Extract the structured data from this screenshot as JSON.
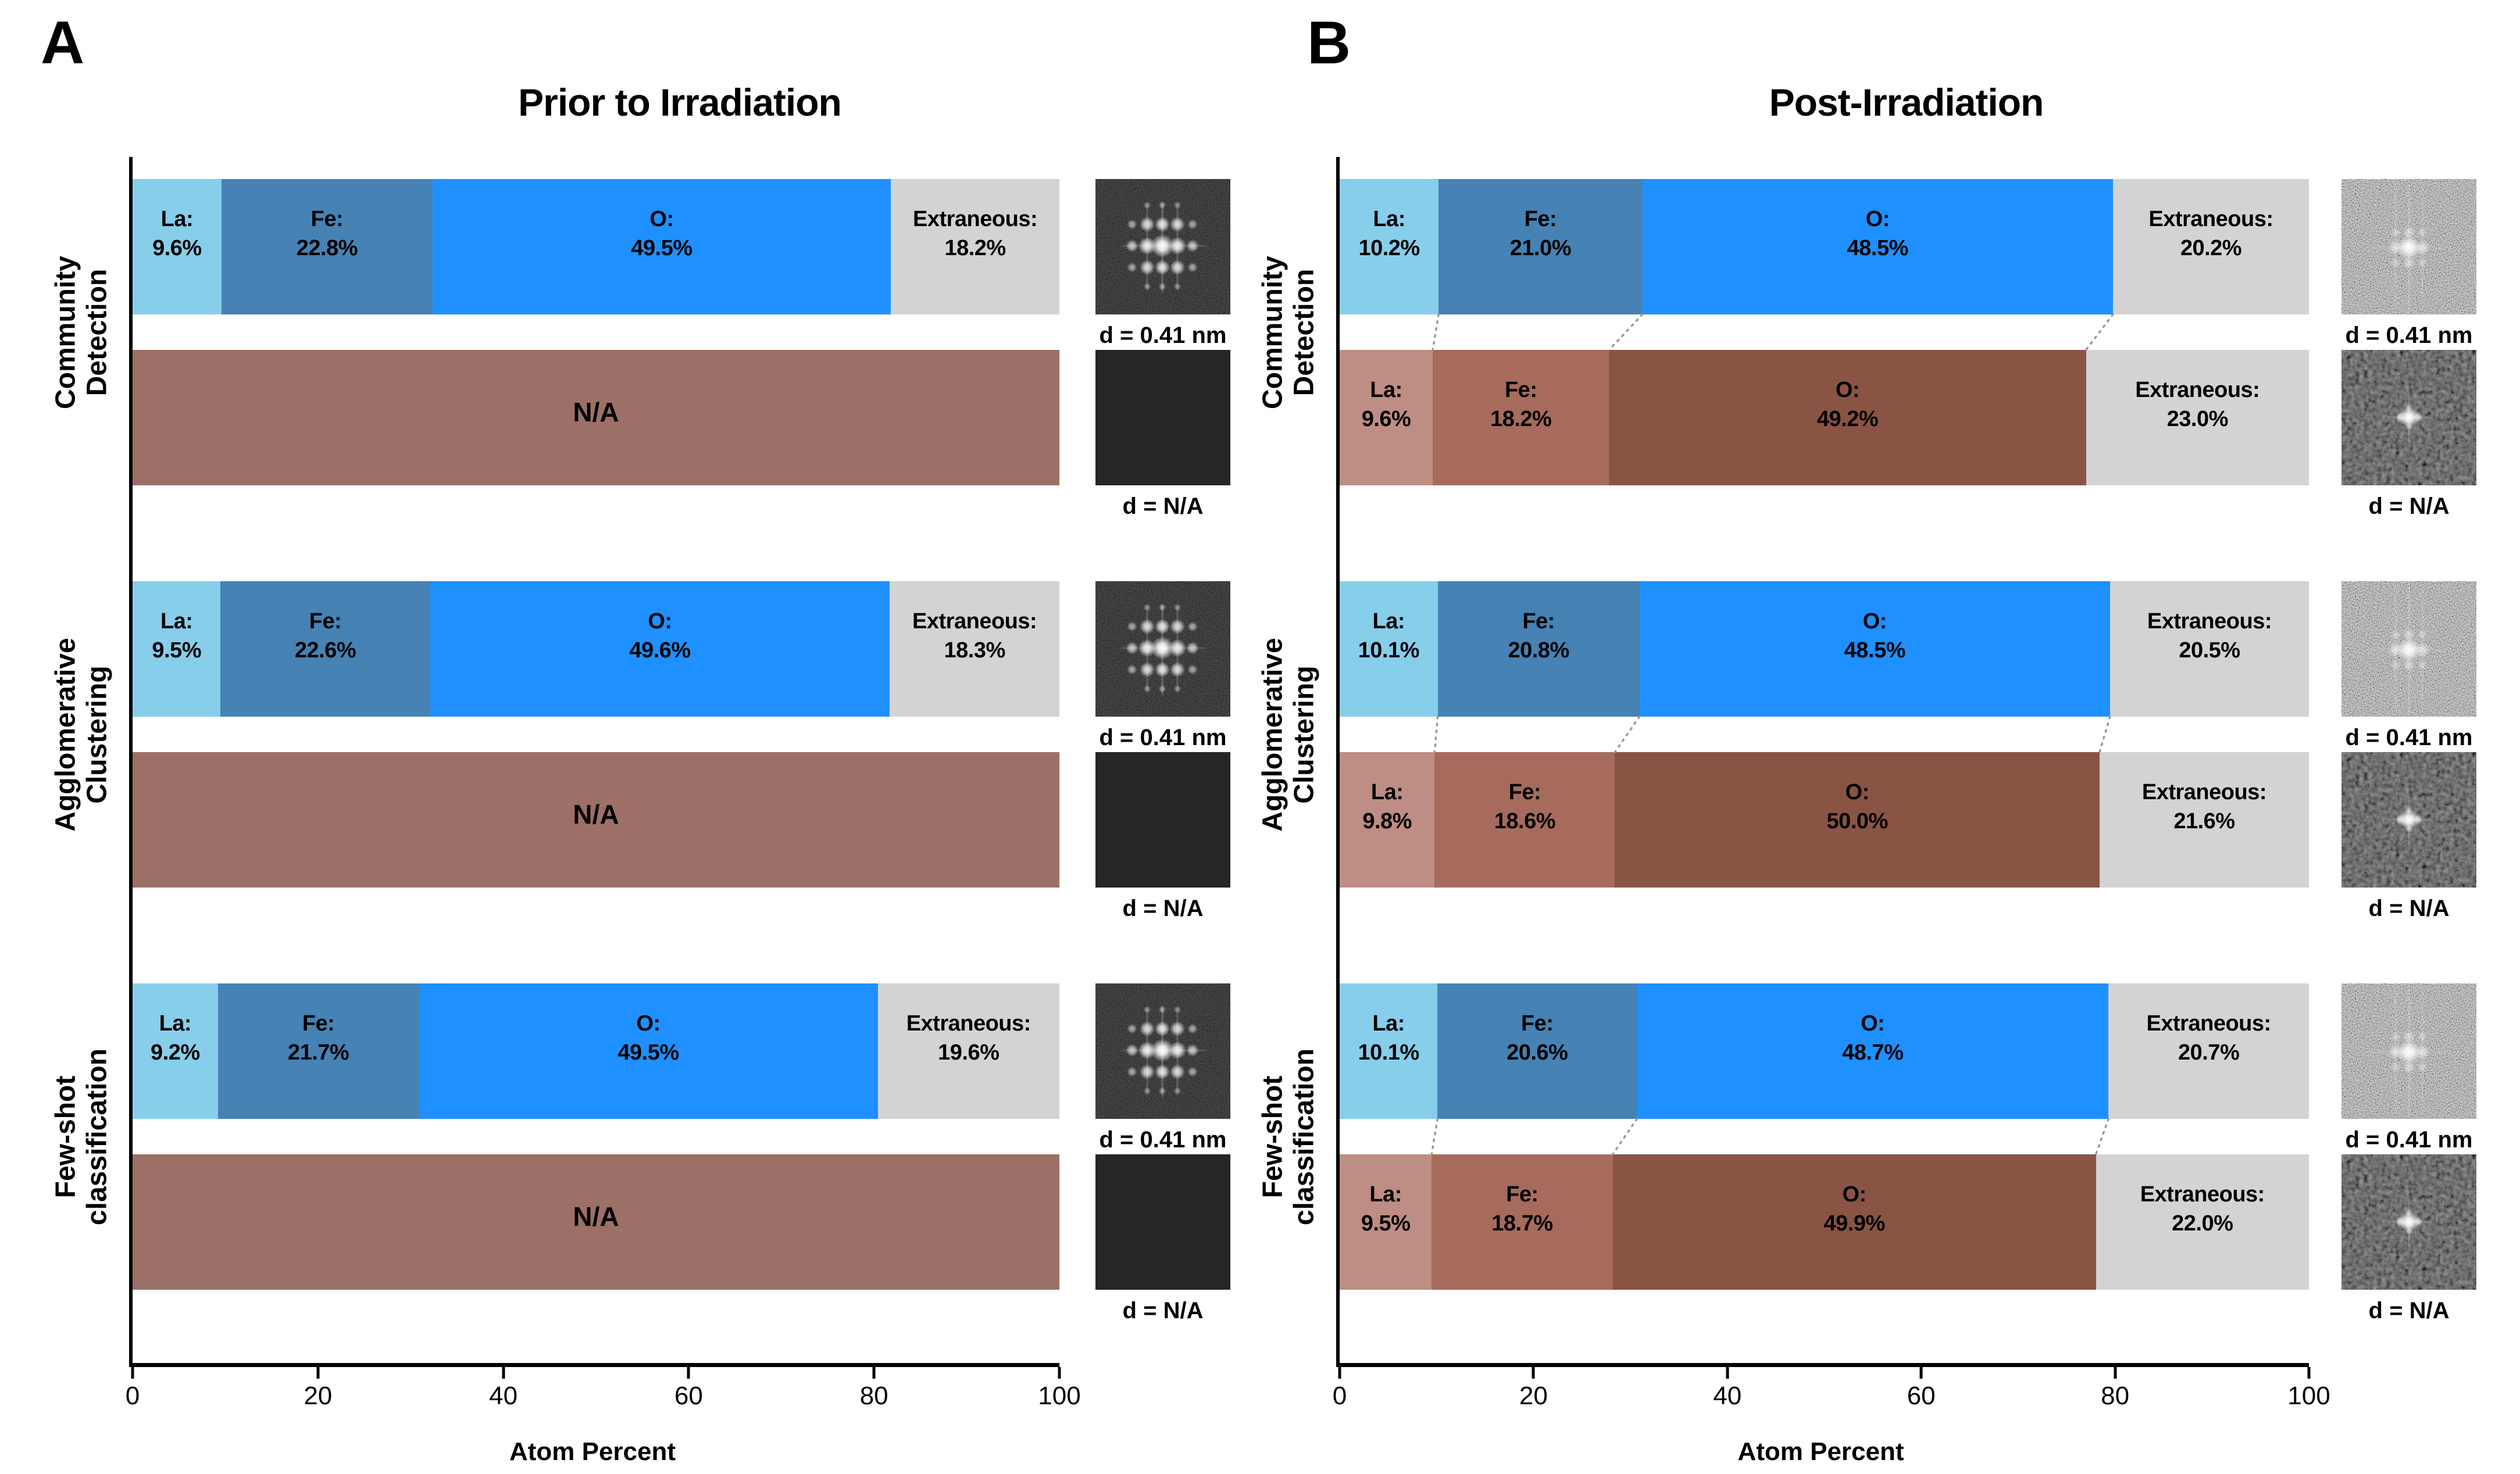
{
  "colors": {
    "la_blue": "#87CEEB",
    "fe_blue": "#4682B4",
    "o_blue": "#1E90FF",
    "extraneous_gray": "#D3D3D3",
    "na_red": "#9C7067",
    "la_red": "#BE8D83",
    "fe_red": "#A66B5D",
    "o_red": "#8A5445",
    "connector_gray": "#999999",
    "axis_black": "#000000"
  },
  "chart_data": [
    {
      "type": "bar",
      "orientation": "horizontal-stacked",
      "panel_label": "A",
      "title": "Prior to Irradiation",
      "xlabel": "Atom Percent",
      "xlim": [
        0,
        100
      ],
      "xticks": [
        0,
        20,
        40,
        60,
        80,
        100
      ],
      "grid": false,
      "legend": false,
      "connectors": false,
      "categories": [
        "Community Detection",
        "Agglomerative Clustering",
        "Few-shot classification"
      ],
      "rows": [
        {
          "category": "Community Detection",
          "bars": [
            {
              "palette": "blue",
              "segments": [
                {
                  "name": "La",
                  "pct": "9.6"
                },
                {
                  "name": "Fe",
                  "pct": "22.8"
                },
                {
                  "name": "O",
                  "pct": "49.5"
                },
                {
                  "name": "Extraneous",
                  "pct": "18.2"
                }
              ]
            },
            {
              "na": "N/A"
            }
          ],
          "insets": [
            {
              "pattern": "fft-lattice",
              "caption": "d = 0.41 nm"
            },
            {
              "pattern": "flat-dark",
              "caption": "d = N/A"
            }
          ]
        },
        {
          "category": "Agglomerative Clustering",
          "bars": [
            {
              "palette": "blue",
              "segments": [
                {
                  "name": "La",
                  "pct": "9.5"
                },
                {
                  "name": "Fe",
                  "pct": "22.6"
                },
                {
                  "name": "O",
                  "pct": "49.6"
                },
                {
                  "name": "Extraneous",
                  "pct": "18.3"
                }
              ]
            },
            {
              "na": "N/A"
            }
          ],
          "insets": [
            {
              "pattern": "fft-lattice",
              "caption": "d = 0.41 nm"
            },
            {
              "pattern": "flat-dark",
              "caption": "d = N/A"
            }
          ]
        },
        {
          "category": "Few-shot classification",
          "bars": [
            {
              "palette": "blue",
              "segments": [
                {
                  "name": "La",
                  "pct": "9.2"
                },
                {
                  "name": "Fe",
                  "pct": "21.7"
                },
                {
                  "name": "O",
                  "pct": "49.5"
                },
                {
                  "name": "Extraneous",
                  "pct": "19.6"
                }
              ]
            },
            {
              "na": "N/A"
            }
          ],
          "insets": [
            {
              "pattern": "fft-lattice",
              "caption": "d = 0.41 nm"
            },
            {
              "pattern": "flat-dark",
              "caption": "d = N/A"
            }
          ]
        }
      ]
    },
    {
      "type": "bar",
      "orientation": "horizontal-stacked",
      "panel_label": "B",
      "title": "Post-Irradiation",
      "xlabel": "Atom Percent",
      "xlim": [
        0,
        100
      ],
      "xticks": [
        0,
        20,
        40,
        60,
        80,
        100
      ],
      "grid": false,
      "legend": false,
      "connectors": true,
      "categories": [
        "Community Detection",
        "Agglomerative Clustering",
        "Few-shot classification"
      ],
      "rows": [
        {
          "category": "Community Detection",
          "bars": [
            {
              "palette": "blue",
              "segments": [
                {
                  "name": "La",
                  "pct": "10.2"
                },
                {
                  "name": "Fe",
                  "pct": "21.0"
                },
                {
                  "name": "O",
                  "pct": "48.5"
                },
                {
                  "name": "Extraneous",
                  "pct": "20.2"
                }
              ]
            },
            {
              "palette": "red",
              "segments": [
                {
                  "name": "La",
                  "pct": "9.6"
                },
                {
                  "name": "Fe",
                  "pct": "18.2"
                },
                {
                  "name": "O",
                  "pct": "49.2"
                },
                {
                  "name": "Extraneous",
                  "pct": "23.0"
                }
              ]
            }
          ],
          "insets": [
            {
              "pattern": "fft-noisy-bright",
              "caption": "d = 0.41 nm"
            },
            {
              "pattern": "fft-noisy-center",
              "caption": "d = N/A"
            }
          ]
        },
        {
          "category": "Agglomerative Clustering",
          "bars": [
            {
              "palette": "blue",
              "segments": [
                {
                  "name": "La",
                  "pct": "10.1"
                },
                {
                  "name": "Fe",
                  "pct": "20.8"
                },
                {
                  "name": "O",
                  "pct": "48.5"
                },
                {
                  "name": "Extraneous",
                  "pct": "20.5"
                }
              ]
            },
            {
              "palette": "red",
              "segments": [
                {
                  "name": "La",
                  "pct": "9.8"
                },
                {
                  "name": "Fe",
                  "pct": "18.6"
                },
                {
                  "name": "O",
                  "pct": "50.0"
                },
                {
                  "name": "Extraneous",
                  "pct": "21.6"
                }
              ]
            }
          ],
          "insets": [
            {
              "pattern": "fft-noisy-bright",
              "caption": "d = 0.41 nm"
            },
            {
              "pattern": "fft-noisy-center",
              "caption": "d = N/A"
            }
          ]
        },
        {
          "category": "Few-shot classification",
          "bars": [
            {
              "palette": "blue",
              "segments": [
                {
                  "name": "La",
                  "pct": "10.1"
                },
                {
                  "name": "Fe",
                  "pct": "20.6"
                },
                {
                  "name": "O",
                  "pct": "48.7"
                },
                {
                  "name": "Extraneous",
                  "pct": "20.7"
                }
              ]
            },
            {
              "palette": "red",
              "segments": [
                {
                  "name": "La",
                  "pct": "9.5"
                },
                {
                  "name": "Fe",
                  "pct": "18.7"
                },
                {
                  "name": "O",
                  "pct": "49.9"
                },
                {
                  "name": "Extraneous",
                  "pct": "22.0"
                }
              ]
            }
          ],
          "insets": [
            {
              "pattern": "fft-noisy-bright",
              "caption": "d = 0.41 nm"
            },
            {
              "pattern": "fft-noisy-center",
              "caption": "d = N/A"
            }
          ]
        }
      ]
    }
  ]
}
